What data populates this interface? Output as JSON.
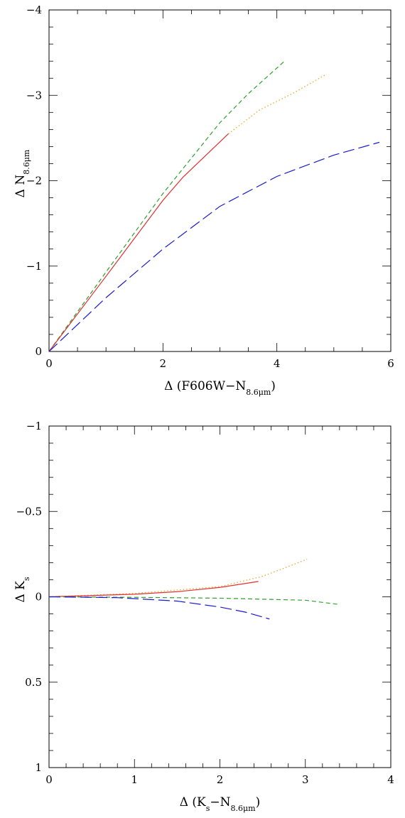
{
  "chart_data": [
    {
      "type": "line",
      "xlabel": {
        "prefix": "Δ (F606W−N",
        "sub": "8.6μm",
        "suffix": ")"
      },
      "ylabel": {
        "prefix": "Δ N",
        "sub": "8.6μm"
      },
      "xlim": [
        0,
        6
      ],
      "ylim": [
        0,
        -4
      ],
      "x_ticks": [
        0,
        2,
        4,
        6
      ],
      "x_tick_labels": [
        "0",
        "2",
        "4",
        "6"
      ],
      "y_ticks": [
        0,
        -1,
        -2,
        -3,
        -4
      ],
      "y_tick_labels": [
        "0",
        "−1",
        "−2",
        "−3",
        "−4"
      ],
      "x_minor_step": 0.5,
      "y_minor_step": 0.2,
      "grid": false,
      "series": [
        {
          "color": "#2ca02c",
          "dash": "dashed",
          "x": [
            0,
            1.0,
            2.0,
            3.0,
            3.5,
            4.15
          ],
          "y": [
            0,
            -0.93,
            -1.85,
            -2.68,
            -3.02,
            -3.41
          ]
        },
        {
          "color": "#e03030",
          "dash": "solid",
          "x": [
            0,
            1.0,
            2.0,
            2.35,
            3.15
          ],
          "y": [
            0,
            -0.88,
            -1.77,
            -2.04,
            -2.55
          ]
        },
        {
          "color": "#e8a020",
          "dash": "dotted",
          "x": [
            3.15,
            3.7,
            4.3,
            4.85
          ],
          "y": [
            -2.55,
            -2.83,
            -3.03,
            -3.24
          ]
        },
        {
          "color": "#1a1ad0",
          "dash": "longdash",
          "x": [
            0,
            1.0,
            2.0,
            3.0,
            4.0,
            5.0,
            5.8
          ],
          "y": [
            0,
            -0.63,
            -1.2,
            -1.7,
            -2.05,
            -2.3,
            -2.45
          ]
        }
      ]
    },
    {
      "type": "line",
      "xlabel": {
        "prefix": "Δ (K",
        "sub": "s",
        "middle": "−N",
        "sub2": "8.6μm",
        "suffix": ")"
      },
      "ylabel": {
        "prefix": "Δ K",
        "sub": "s"
      },
      "xlim": [
        0,
        4
      ],
      "ylim": [
        1,
        -1
      ],
      "x_ticks": [
        0,
        1,
        2,
        3,
        4
      ],
      "x_tick_labels": [
        "0",
        "1",
        "2",
        "3",
        "4"
      ],
      "y_ticks": [
        1,
        0.5,
        0,
        -0.5,
        -1
      ],
      "y_tick_labels": [
        "1",
        "0.5",
        "0",
        "−0.5",
        "−1"
      ],
      "x_minor_step": 0.2,
      "y_minor_step": 0.1,
      "grid": false,
      "series": [
        {
          "color": "#e8a020",
          "dash": "dotted",
          "x": [
            0,
            1.0,
            2.0,
            2.5,
            3.02
          ],
          "y": [
            0,
            -0.02,
            -0.06,
            -0.12,
            -0.22
          ]
        },
        {
          "color": "#e03030",
          "dash": "solid",
          "x": [
            0,
            1.0,
            1.5,
            2.0,
            2.45
          ],
          "y": [
            0,
            -0.015,
            -0.03,
            -0.055,
            -0.09
          ]
        },
        {
          "color": "#2ca02c",
          "dash": "dashed",
          "x": [
            0,
            1.0,
            2.0,
            3.0,
            3.4
          ],
          "y": [
            0,
            0.003,
            0.008,
            0.02,
            0.045
          ]
        },
        {
          "color": "#1a1ad0",
          "dash": "longdash",
          "x": [
            0,
            0.8,
            1.5,
            2.0,
            2.3,
            2.58
          ],
          "y": [
            0,
            0.005,
            0.025,
            0.06,
            0.09,
            0.13
          ]
        }
      ]
    }
  ]
}
